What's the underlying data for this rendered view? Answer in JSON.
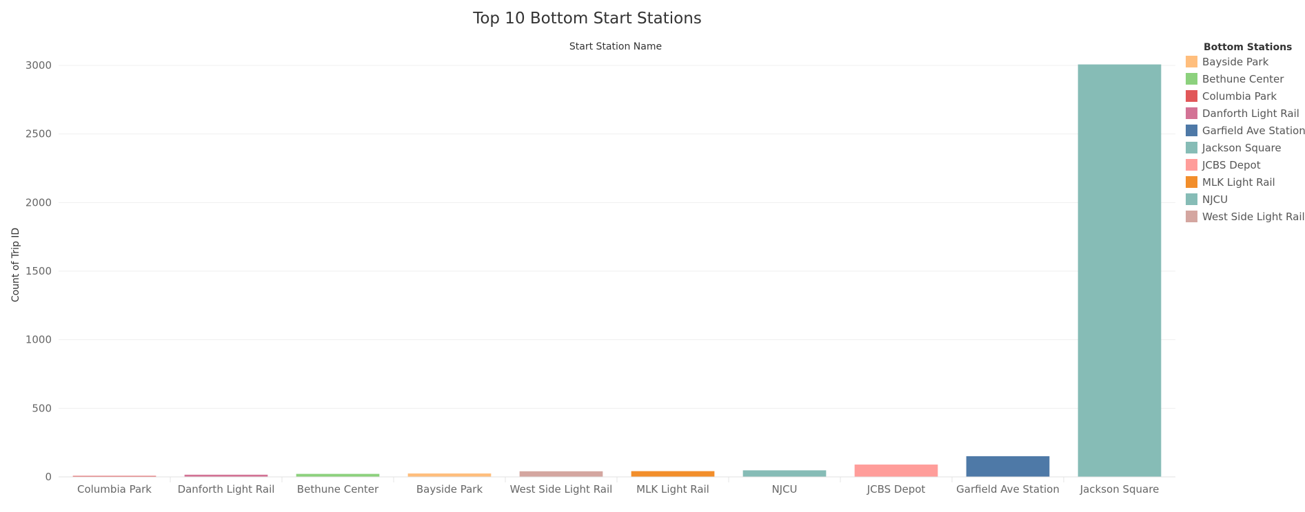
{
  "chart_data": {
    "type": "bar",
    "title": "Top 10 Bottom Start Stations",
    "column_header": "Start Station Name",
    "ylabel": "Count of Trip ID",
    "ylim": [
      0,
      3000
    ],
    "yticks": [
      0,
      500,
      1000,
      1500,
      2000,
      2500,
      3000
    ],
    "grid": true,
    "categories": [
      "Columbia Park",
      "Danforth Light Rail",
      "Bethune Center",
      "Bayside Park",
      "West Side Light Rail",
      "MLK Light Rail",
      "NJCU",
      "JCBS Depot",
      "Garfield Ave Station",
      "Jackson Square"
    ],
    "values": [
      7,
      16,
      22,
      25,
      41,
      42,
      48,
      90,
      151,
      3007
    ],
    "colors": [
      "#e15759",
      "#d37295",
      "#8cd17d",
      "#ffbe7d",
      "#d4a6a0",
      "#f28e2b",
      "#86bcb6",
      "#ff9d9a",
      "#4e79a7",
      "#86bcb6"
    ],
    "legend": {
      "title": "Bottom Stations",
      "placement": "right",
      "items": [
        {
          "label": "Bayside Park",
          "color": "#ffbe7d"
        },
        {
          "label": "Bethune Center",
          "color": "#8cd17d"
        },
        {
          "label": "Columbia Park",
          "color": "#e15759"
        },
        {
          "label": "Danforth Light Rail",
          "color": "#d37295"
        },
        {
          "label": "Garfield Ave Station",
          "color": "#4e79a7"
        },
        {
          "label": "Jackson Square",
          "color": "#86bcb6"
        },
        {
          "label": "JCBS Depot",
          "color": "#ff9d9a"
        },
        {
          "label": "MLK Light Rail",
          "color": "#f28e2b"
        },
        {
          "label": "NJCU",
          "color": "#86bcb6"
        },
        {
          "label": "West Side Light Rail",
          "color": "#d4a6a0"
        }
      ]
    }
  }
}
